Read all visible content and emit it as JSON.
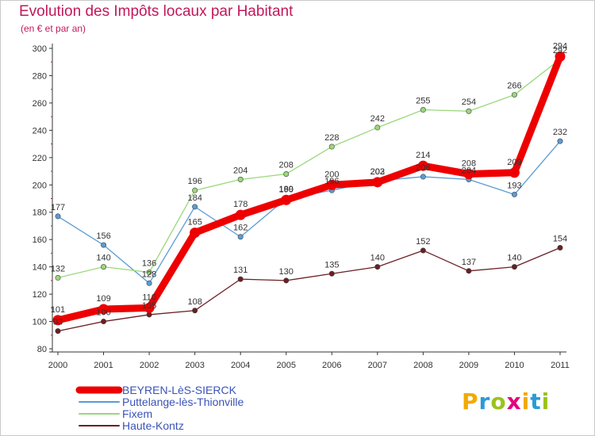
{
  "header": {
    "title": "Evolution des Impôts locaux par Habitant",
    "subtitle": "(en € et par an)"
  },
  "brand": {
    "letters": [
      "P",
      "r",
      "o",
      "x",
      "i",
      "t",
      "i"
    ],
    "colors": [
      "#f2a900",
      "#2a9bd6",
      "#9ac31c",
      "#e4007c",
      "#f2a900",
      "#2a9bd6",
      "#9ac31c"
    ]
  },
  "chart_data": {
    "type": "line",
    "title": "Evolution des Impôts locaux par Habitant",
    "subtitle": "(en € et par an)",
    "xlabel": "",
    "ylabel": "",
    "ylim": [
      80,
      300
    ],
    "yticks": [
      80,
      100,
      120,
      140,
      160,
      180,
      200,
      220,
      240,
      260,
      280,
      300
    ],
    "grid": false,
    "legend_position": "bottom-left",
    "x": [
      "2000",
      "2001",
      "2002",
      "2003",
      "2004",
      "2005",
      "2006",
      "2007",
      "2008",
      "2009",
      "2010",
      "2011"
    ],
    "series": [
      {
        "name": "BEYREN-LèS-SIERCK",
        "color": "#ee0000",
        "thick": true,
        "values": [
          101,
          109,
          110,
          165,
          178,
          189,
          200,
          202,
          214,
          208,
          209,
          294
        ]
      },
      {
        "name": "Puttelange-lès-Thionville",
        "color": "#5a9bd5",
        "thick": false,
        "values": [
          177,
          156,
          128,
          184,
          162,
          190,
          196,
          203,
          206,
          204,
          193,
          232
        ]
      },
      {
        "name": "Fixem",
        "color": "#9ad87a",
        "thick": false,
        "values": [
          132,
          140,
          136,
          196,
          204,
          208,
          228,
          242,
          255,
          254,
          266,
          292
        ]
      },
      {
        "name": "Haute-Kontz",
        "color": "#6b1f24",
        "thick": false,
        "values": [
          93,
          100,
          105,
          108,
          131,
          130,
          135,
          140,
          152,
          137,
          140,
          154
        ]
      }
    ]
  }
}
